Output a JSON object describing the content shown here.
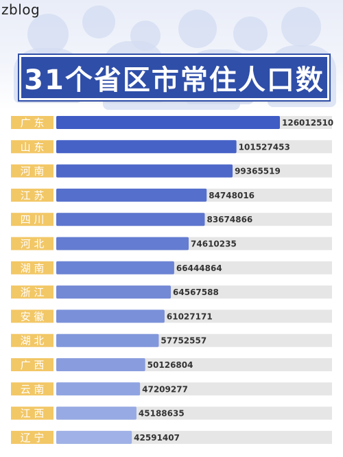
{
  "watermark": "zblog",
  "colors": {
    "title_bg": "#2f4ea8",
    "label_bg": "#f2c766",
    "label_text": "#ffffff",
    "bar_dark": "#3f5bc4",
    "bar_light": "#9fb1e6",
    "track": "#e6e6e6",
    "value_text": "#333333"
  },
  "chart_data": {
    "type": "bar",
    "orientation": "horizontal",
    "title": "31个省区市常住人口数",
    "categories": [
      "广 东",
      "山 东",
      "河 南",
      "江 苏",
      "四 川",
      "河 北",
      "湖 南",
      "浙 江",
      "安 徽",
      "湖 北",
      "广 西",
      "云 南",
      "江 西",
      "辽 宁"
    ],
    "values": [
      126012510,
      101527453,
      99365519,
      84748016,
      83674866,
      74610235,
      66444864,
      64567588,
      61027171,
      57752557,
      50126804,
      47209277,
      45188635,
      42591407
    ],
    "value_labels": [
      "126012510",
      "101527453",
      "99365519",
      "84748016",
      "83674866",
      "74610235",
      "66444864",
      "64567588",
      "61027171",
      "57752557",
      "50126804",
      "47209277",
      "45188635",
      "42591407"
    ],
    "xlim": [
      0,
      126012510
    ],
    "grid": false,
    "legend": "none"
  }
}
